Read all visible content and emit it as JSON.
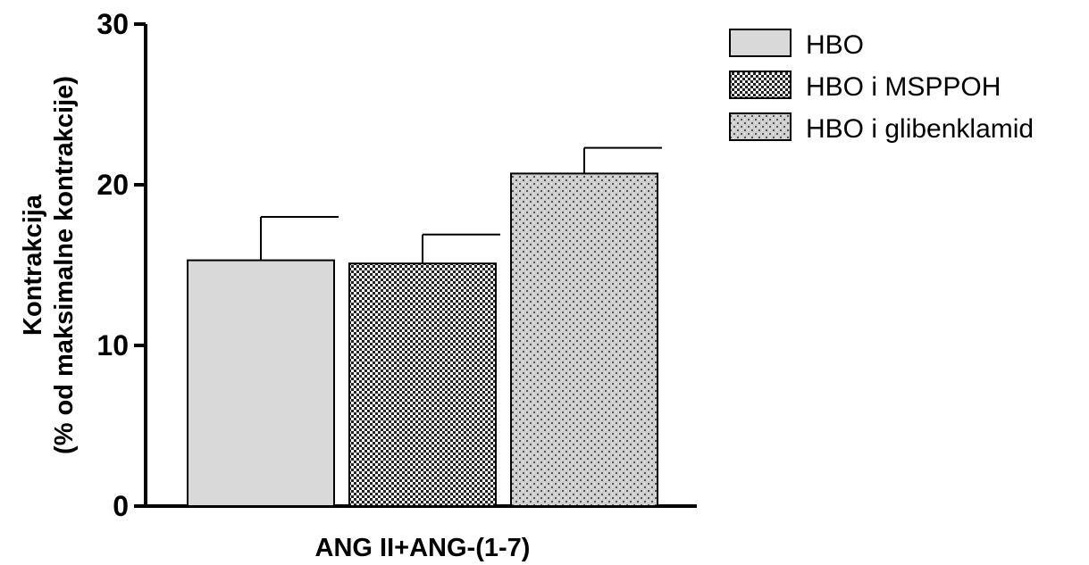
{
  "chart_data": {
    "type": "bar",
    "ylabel_line1": "Kontrakcija",
    "ylabel_line2": "(% od maksimalne kontrakcije)",
    "xlabel": "ANG II+ANG-(1-7)",
    "ylim": [
      0,
      30
    ],
    "yticks": [
      0,
      10,
      20,
      30
    ],
    "grid": false,
    "legend_position": "top-right",
    "series": [
      {
        "name": "HBO",
        "value": 15.3,
        "error": 2.7,
        "fill": "#d9d9d9",
        "pattern": "solid"
      },
      {
        "name": "HBO i MSPPOH",
        "value": 15.1,
        "error": 1.8,
        "fill": "#333333",
        "pattern": "dense-checker"
      },
      {
        "name": "HBO i glibenklamid",
        "value": 20.7,
        "error": 1.6,
        "fill": "#c8c8c8",
        "pattern": "sparse-dots"
      }
    ]
  }
}
